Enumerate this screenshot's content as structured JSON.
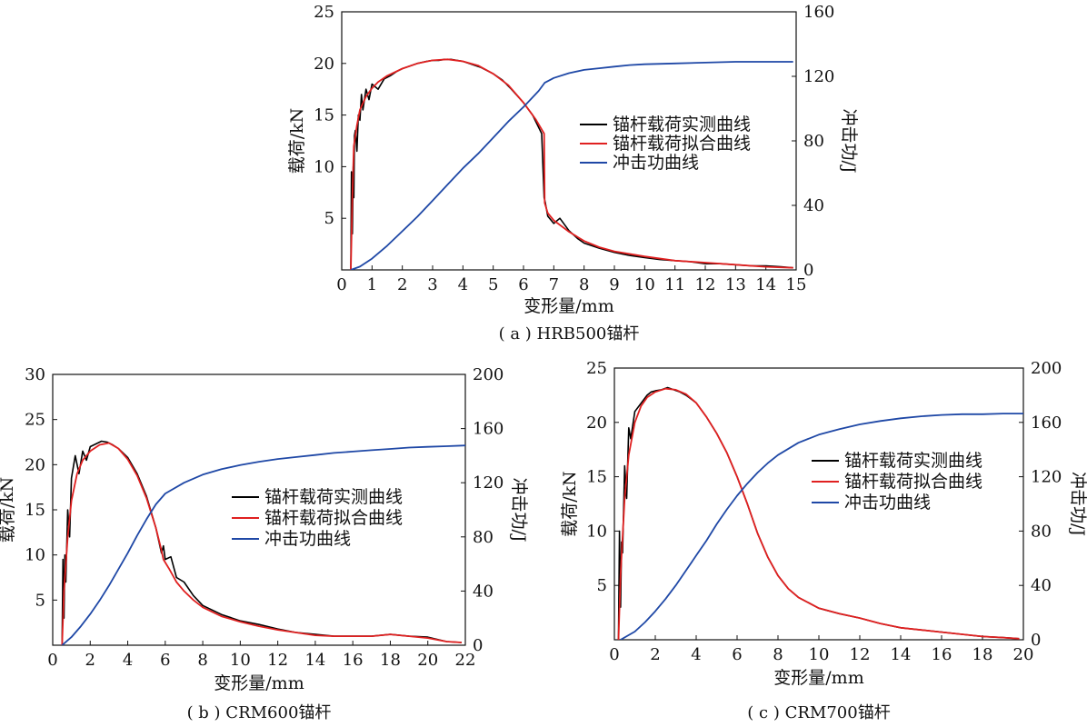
{
  "chart_data": [
    {
      "type": "line",
      "caption": "( a ) HRB500锚杆",
      "xlabel": "变形量/mm",
      "ylabel": "载荷/kN",
      "y2label": "冲击功/J",
      "xlim": [
        0,
        15
      ],
      "ylim": [
        0,
        25
      ],
      "y2lim": [
        0,
        160
      ],
      "xticks": [
        0,
        1,
        2,
        3,
        4,
        5,
        6,
        7,
        8,
        9,
        10,
        11,
        12,
        13,
        14,
        15
      ],
      "yticks": [
        5,
        10,
        15,
        20,
        25
      ],
      "y2ticks": [
        0,
        40,
        80,
        120,
        160
      ],
      "legend_position": "right",
      "series": [
        {
          "name": "锚杆载荷实测曲线",
          "axis": "left",
          "color": "#000000",
          "x": [
            0.3,
            0.32,
            0.35,
            0.38,
            0.4,
            0.42,
            0.45,
            0.5,
            0.55,
            0.6,
            0.65,
            0.7,
            0.8,
            0.9,
            1.0,
            1.2,
            1.4,
            1.6,
            1.8,
            2.0,
            2.2,
            2.5,
            2.8,
            3.0,
            3.2,
            3.4,
            3.6,
            3.8,
            4.0,
            4.3,
            4.6,
            5.0,
            5.3,
            5.6,
            6.0,
            6.3,
            6.6,
            6.68,
            6.72,
            6.8,
            7.0,
            7.2,
            7.5,
            7.8,
            8.0,
            8.5,
            9.0,
            9.5,
            10,
            10.5,
            11,
            11.5,
            12,
            12.5,
            13,
            13.5,
            14,
            14.5,
            14.9
          ],
          "y": [
            0,
            9.5,
            3.5,
            10,
            7,
            13,
            13.5,
            11.5,
            15,
            14.5,
            17,
            15.5,
            17.5,
            16.5,
            18,
            17.5,
            18.5,
            18.8,
            19.2,
            19.5,
            19.7,
            20,
            20.2,
            20.3,
            20.3,
            20.4,
            20.4,
            20.3,
            20.2,
            19.9,
            19.6,
            19,
            18.4,
            17.5,
            16.2,
            15,
            13.2,
            7,
            6.5,
            5.2,
            4.5,
            5,
            3.8,
            3,
            2.6,
            2.1,
            1.7,
            1.4,
            1.2,
            1,
            0.9,
            0.8,
            0.6,
            0.6,
            0.5,
            0.4,
            0.4,
            0.3,
            0.2
          ]
        },
        {
          "name": "锚杆载荷拟合曲线",
          "axis": "left",
          "color": "#e02020",
          "x": [
            0.3,
            0.35,
            0.4,
            0.5,
            0.6,
            0.8,
            1.0,
            1.2,
            1.5,
            2.0,
            2.5,
            3.0,
            3.5,
            4.0,
            4.5,
            5.0,
            5.5,
            6.0,
            6.4,
            6.68,
            6.7,
            6.8,
            7.0,
            7.5,
            8.0,
            8.5,
            9.0,
            10,
            11,
            12,
            13,
            14,
            14.9
          ],
          "y": [
            0,
            7,
            12,
            14,
            15.5,
            16.8,
            17.6,
            18.2,
            18.8,
            19.5,
            20,
            20.3,
            20.4,
            20.2,
            19.8,
            19,
            17.9,
            16.2,
            14.6,
            13.2,
            6.5,
            5.5,
            4.8,
            3.7,
            2.8,
            2.2,
            1.8,
            1.3,
            0.9,
            0.7,
            0.5,
            0.3,
            0.2
          ]
        },
        {
          "name": "冲击功曲线",
          "axis": "right",
          "color": "#1f48a6",
          "x": [
            0.3,
            0.6,
            1.0,
            1.5,
            2.0,
            2.5,
            3.0,
            3.5,
            4.0,
            4.5,
            5.0,
            5.5,
            6.0,
            6.5,
            6.7,
            7.0,
            7.5,
            8.0,
            8.5,
            9.0,
            9.5,
            10,
            11,
            12,
            13,
            14,
            14.9
          ],
          "y": [
            0,
            2,
            7,
            15,
            24,
            33,
            43,
            53,
            63,
            72,
            82,
            92,
            101,
            111,
            116,
            119,
            122,
            124,
            125,
            126,
            127,
            127.5,
            128,
            128.5,
            129,
            129,
            129
          ]
        }
      ]
    },
    {
      "type": "line",
      "caption": "( b ) CRM600锚杆",
      "xlabel": "变形量/mm",
      "ylabel": "载荷/kN",
      "y2label": "冲击功/J",
      "xlim": [
        0,
        22
      ],
      "ylim": [
        0,
        30
      ],
      "y2lim": [
        0,
        200
      ],
      "xticks": [
        0,
        2,
        4,
        6,
        8,
        10,
        12,
        14,
        16,
        18,
        20,
        22
      ],
      "yticks": [
        5,
        10,
        15,
        20,
        25,
        30
      ],
      "y2ticks": [
        0,
        40,
        80,
        120,
        160,
        200
      ],
      "legend_position": "right",
      "series": [
        {
          "name": "锚杆载荷实测曲线",
          "axis": "left",
          "color": "#000000",
          "x": [
            0.5,
            0.55,
            0.6,
            0.65,
            0.7,
            0.8,
            0.9,
            1.0,
            1.2,
            1.4,
            1.6,
            1.8,
            2.0,
            2.3,
            2.6,
            2.9,
            3.2,
            3.5,
            4.0,
            4.5,
            5.0,
            5.5,
            5.8,
            5.9,
            6.0,
            6.3,
            6.6,
            7.0,
            7.5,
            8.0,
            9.0,
            10,
            11,
            12,
            13,
            14,
            15,
            16,
            17,
            17.5,
            18,
            18.5,
            19,
            20,
            21,
            21.8
          ],
          "y": [
            0,
            9.5,
            3,
            10,
            7,
            15,
            12,
            18.5,
            21,
            19,
            21.5,
            20.5,
            22,
            22.3,
            22.6,
            22.5,
            22.2,
            21.8,
            20.8,
            19,
            16.5,
            13,
            10.2,
            11,
            9.5,
            9.8,
            7.5,
            7,
            5.5,
            4.4,
            3.4,
            2.7,
            2.3,
            1.8,
            1.4,
            1.2,
            1,
            1,
            1,
            1.1,
            1.2,
            1.1,
            1,
            0.9,
            0.4,
            0.3
          ]
        },
        {
          "name": "锚杆载荷拟合曲线",
          "axis": "left",
          "color": "#e02020",
          "x": [
            0.5,
            0.6,
            0.8,
            1.0,
            1.3,
            1.6,
            2.0,
            2.5,
            3.0,
            3.5,
            4.0,
            4.5,
            5.0,
            5.5,
            5.8,
            5.9,
            6.2,
            6.6,
            7.0,
            7.5,
            8.0,
            9.0,
            10,
            11,
            12,
            13,
            14,
            15,
            16,
            17,
            17.5,
            18,
            18.5,
            19,
            20,
            21,
            21.8
          ],
          "y": [
            0,
            6,
            12,
            16,
            19,
            20.5,
            21.5,
            22.2,
            22.4,
            21.8,
            20.6,
            18.8,
            16.3,
            13,
            10.5,
            9.5,
            8.5,
            7,
            6,
            5,
            4.2,
            3.2,
            2.6,
            2.1,
            1.7,
            1.4,
            1.1,
            1,
            1,
            1,
            1.1,
            1.2,
            1.1,
            1,
            0.8,
            0.4,
            0.3
          ]
        },
        {
          "name": "冲击功曲线",
          "axis": "right",
          "color": "#1f48a6",
          "x": [
            0.5,
            1.0,
            1.5,
            2.0,
            2.5,
            3.0,
            3.5,
            4.0,
            4.5,
            5.0,
            5.5,
            6.0,
            7.0,
            8.0,
            9.0,
            10,
            11,
            12,
            13,
            14,
            15,
            16,
            17,
            18,
            19,
            20,
            21,
            22
          ],
          "y": [
            0,
            6,
            14,
            23,
            33,
            44,
            56,
            68,
            81,
            93,
            104,
            112,
            120,
            126,
            130,
            133,
            135.5,
            137.5,
            139,
            140.5,
            142,
            143,
            144,
            145,
            146,
            146.5,
            147,
            147.5
          ]
        }
      ]
    },
    {
      "type": "line",
      "caption": "( c ) CRM700锚杆",
      "xlabel": "变形量/mm",
      "ylabel": "载荷/kN",
      "y2label": "冲击功/J",
      "xlim": [
        0,
        20
      ],
      "ylim": [
        0,
        25
      ],
      "y2lim": [
        0,
        200
      ],
      "xticks": [
        0,
        2,
        4,
        6,
        8,
        10,
        12,
        14,
        16,
        18,
        20
      ],
      "yticks": [
        5,
        10,
        15,
        20,
        25
      ],
      "y2ticks": [
        0,
        40,
        80,
        120,
        160,
        200
      ],
      "legend_position": "right",
      "series": [
        {
          "name": "锚杆载荷实测曲线",
          "axis": "left",
          "color": "#000000",
          "x": [
            0.2,
            0.25,
            0.3,
            0.35,
            0.4,
            0.5,
            0.6,
            0.7,
            0.8,
            1.0,
            1.2,
            1.4,
            1.6,
            1.8,
            2.0,
            2.3,
            2.6,
            2.9,
            3.2,
            3.5,
            4.0,
            4.5,
            5.0,
            5.5,
            6.0,
            6.5,
            7.0,
            7.5,
            8.0,
            8.5,
            9.0,
            10,
            11,
            12,
            13,
            14,
            15,
            16,
            17,
            18,
            19,
            19.8
          ],
          "y": [
            0,
            10,
            3,
            9,
            8,
            16,
            13,
            19.5,
            18.5,
            21,
            21.5,
            22,
            22.5,
            22.8,
            22.9,
            23,
            23.2,
            23,
            22.8,
            22.5,
            21.8,
            20.5,
            19,
            17.2,
            15,
            12.5,
            9.8,
            7.6,
            5.9,
            4.7,
            3.9,
            2.9,
            2.4,
            2,
            1.5,
            1.1,
            0.9,
            0.7,
            0.5,
            0.3,
            0.2,
            0.1
          ]
        },
        {
          "name": "锚杆载荷拟合曲线",
          "axis": "left",
          "color": "#e02020",
          "x": [
            0.2,
            0.3,
            0.5,
            0.7,
            1.0,
            1.3,
            1.6,
            2.0,
            2.5,
            3.0,
            3.5,
            4.0,
            4.5,
            5.0,
            5.5,
            6.0,
            6.5,
            7.0,
            7.5,
            8.0,
            8.5,
            9.0,
            10,
            11,
            12,
            13,
            14,
            15,
            16,
            17,
            18,
            19,
            19.8
          ],
          "y": [
            0,
            6,
            13,
            17,
            20,
            21.5,
            22.3,
            22.8,
            23.1,
            23,
            22.6,
            21.8,
            20.5,
            19,
            17.2,
            15,
            12.5,
            9.8,
            7.6,
            5.9,
            4.7,
            3.9,
            2.9,
            2.4,
            2,
            1.5,
            1.1,
            0.9,
            0.7,
            0.5,
            0.3,
            0.2,
            0.1
          ]
        },
        {
          "name": "冲击功曲线",
          "axis": "right",
          "color": "#1f48a6",
          "x": [
            0.3,
            1.0,
            1.5,
            2.0,
            2.5,
            3.0,
            3.5,
            4.0,
            4.5,
            5.0,
            5.5,
            6.0,
            6.5,
            7.0,
            7.5,
            8.0,
            9.0,
            10,
            11,
            12,
            13,
            14,
            15,
            16,
            17,
            18,
            19,
            20
          ],
          "y": [
            0,
            6,
            13,
            21,
            30,
            40,
            51,
            62,
            73,
            85,
            96,
            106,
            115,
            123,
            130,
            136,
            145,
            151,
            155,
            158.5,
            161,
            163,
            164.5,
            165.5,
            166,
            166,
            166.5,
            166.5
          ]
        }
      ]
    }
  ]
}
